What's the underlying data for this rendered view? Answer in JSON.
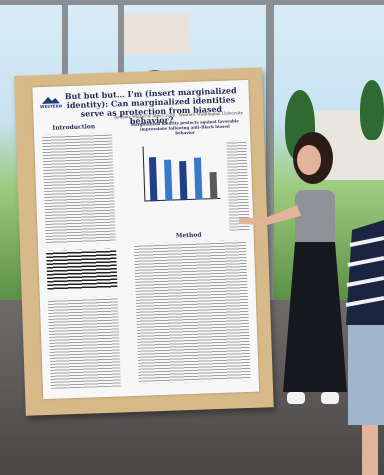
{
  "poster": {
    "title": "But but but… I'm (insert marginalized identity): Can marginalized identities serve as protection from biased behavior?",
    "authors": "Bethany Walker & Alex Czopp · Western Washington University",
    "logo_text": "WESTERN",
    "intro_heading": "Introduction",
    "method_heading": "Marginalized identity protects against favorable impressions following anti-Black biased behavior",
    "results_heading": "Method",
    "colors": {
      "title": "#1e2a55",
      "bar_dark": "#1f3f86",
      "bar_light": "#3a78c8",
      "board": "#d8b98a"
    }
  },
  "chart_data": {
    "type": "bar",
    "categories": [
      "A",
      "B",
      "C",
      "D",
      "E"
    ],
    "series": [
      {
        "values": [
          5.6,
          5.2,
          5.0,
          5.3,
          3.5
        ]
      }
    ],
    "ylim": [
      0,
      7
    ]
  }
}
